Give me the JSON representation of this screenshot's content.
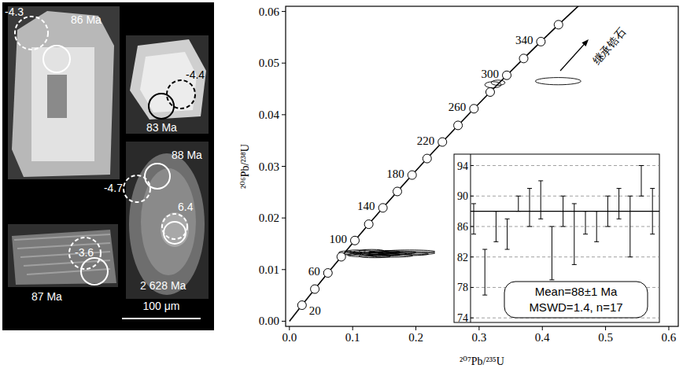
{
  "cl_image": {
    "labels": [
      "-4.3",
      "86 Ma",
      "-4.4",
      "83 Ma",
      "88 Ma",
      "-4.7",
      "6.4",
      "2 628 Ma",
      "-3.6",
      "87 Ma"
    ],
    "scale_bar": "100 μm"
  },
  "chart_data": {
    "type": "concordia",
    "x_label": "²⁰⁷Pb/²³⁵U",
    "y_label": "²⁰⁶Pb/²³⁸U",
    "xlim": [
      -0.006,
      0.615
    ],
    "xticks": [
      {
        "value": 0,
        "label": "0.0"
      },
      0.1,
      0.2,
      0.3,
      0.4,
      0.5,
      0.6
    ],
    "ylim": [
      -0.001,
      0.061
    ],
    "yticks": [
      {
        "value": 0,
        "label": "0.00"
      },
      0.01,
      0.02,
      0.03,
      0.04,
      0.05,
      0.06
    ],
    "grid": false,
    "concordia": {
      "ages": [
        20,
        40,
        60,
        80,
        100,
        120,
        140,
        160,
        180,
        200,
        220,
        240,
        260,
        280,
        300,
        320,
        340,
        360
      ],
      "x": [
        0.019892,
        0.04018,
        0.060872,
        0.081975,
        0.103498,
        0.125449,
        0.147836,
        0.170669,
        0.193956,
        0.217706,
        0.241927,
        0.26663,
        0.291824,
        0.31752,
        0.343727,
        0.370457,
        0.397721,
        0.425524
      ],
      "y": [
        0.003107,
        0.006224,
        0.009351,
        0.012487,
        0.015633,
        0.018789,
        0.021955,
        0.025131,
        0.028316,
        0.031511,
        0.034717,
        0.037932,
        0.041157,
        0.044392,
        0.047637,
        0.050893,
        0.054158,
        0.057434
      ],
      "age_labels": [
        20,
        null,
        60,
        null,
        100,
        null,
        140,
        null,
        180,
        null,
        220,
        null,
        260,
        null,
        300,
        null,
        340,
        null
      ]
    },
    "curve_ends": {
      "x": [
        0,
        0.48281
      ],
      "y": [
        0,
        0.064016
      ]
    },
    "points": {
      "x": [
        0.09,
        0.1,
        0.105,
        0.112,
        0.118,
        0.125,
        0.13,
        0.135,
        0.14,
        0.145,
        0.15,
        0.155,
        0.16,
        0.17,
        0.18,
        0.195,
        0.19,
        0.322,
        0.33,
        0.425
      ],
      "y": [
        0.0133,
        0.0131,
        0.0135,
        0.0128,
        0.0134,
        0.0131,
        0.0136,
        0.0126,
        0.0132,
        0.0129,
        0.0134,
        0.0131,
        0.0127,
        0.0133,
        0.013,
        0.0132,
        0.0135,
        0.0458,
        0.0462,
        0.0465
      ],
      "x_error": [
        0.012,
        0.015,
        0.015,
        0.02,
        0.018,
        0.025,
        0.02,
        0.025,
        0.022,
        0.03,
        0.025,
        0.03,
        0.035,
        0.03,
        0.04,
        0.035,
        0.04,
        0.013,
        0.011,
        0.036
      ],
      "y_error": [
        0.0003,
        0.0003,
        0.0003,
        0.0003,
        0.0003,
        0.0003,
        0.0003,
        0.0003,
        0.0003,
        0.0003,
        0.0003,
        0.0003,
        0.0003,
        0.0003,
        0.0003,
        0.0003,
        0.0003,
        0.0006,
        0.0005,
        0.0007
      ]
    },
    "annotation": "继承锆石",
    "inset": {
      "type": "error_bar",
      "ylim": [
        73.4,
        95.5
      ],
      "yticks": [
        74,
        78,
        82,
        86,
        90,
        94
      ],
      "grid": true,
      "values": [
        87,
        80,
        86,
        85,
        89,
        88.5,
        89.5,
        82.5,
        88,
        85,
        86.5,
        86,
        88,
        89,
        86,
        92,
        88
      ],
      "errors": [
        2,
        3,
        2,
        2,
        1,
        2.5,
        2.5,
        3.5,
        2,
        4,
        1.5,
        2,
        2,
        2,
        4,
        2,
        3
      ],
      "mean": 88,
      "texts": [
        "Mean=88±1 Ma",
        "MSWD=1.4, n=17"
      ]
    }
  }
}
